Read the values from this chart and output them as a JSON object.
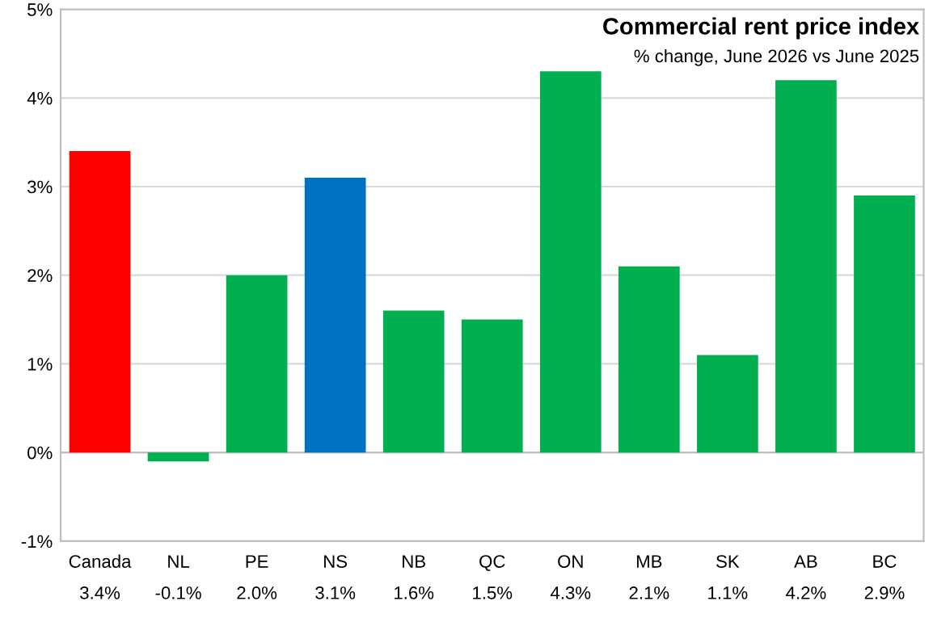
{
  "chart_data": {
    "type": "bar",
    "title": "Commercial rent price index",
    "subtitle": "% change, June 2026 vs June 2025",
    "categories": [
      "Canada",
      "NL",
      "PE",
      "NS",
      "NB",
      "QC",
      "ON",
      "MB",
      "SK",
      "AB",
      "BC"
    ],
    "values": [
      3.4,
      -0.1,
      2.0,
      3.1,
      1.6,
      1.5,
      4.3,
      2.1,
      1.1,
      4.2,
      2.9
    ],
    "value_labels": [
      "3.4%",
      "-0.1%",
      "2.0%",
      "3.1%",
      "1.6%",
      "1.5%",
      "4.3%",
      "2.1%",
      "1.1%",
      "4.2%",
      "2.9%"
    ],
    "colors": [
      "#ff0000",
      "#00b050",
      "#00b050",
      "#0070c0",
      "#00b050",
      "#00b050",
      "#00b050",
      "#00b050",
      "#00b050",
      "#00b050",
      "#00b050"
    ],
    "ylim": [
      -1,
      5
    ],
    "yticks": [
      {
        "value": -1,
        "label": "-1%"
      },
      {
        "value": 0,
        "label": "0%"
      },
      {
        "value": 1,
        "label": "1%"
      },
      {
        "value": 2,
        "label": "2%"
      },
      {
        "value": 3,
        "label": "3%"
      },
      {
        "value": 4,
        "label": "4%"
      },
      {
        "value": 5,
        "label": "5%"
      }
    ],
    "grid": "y"
  }
}
